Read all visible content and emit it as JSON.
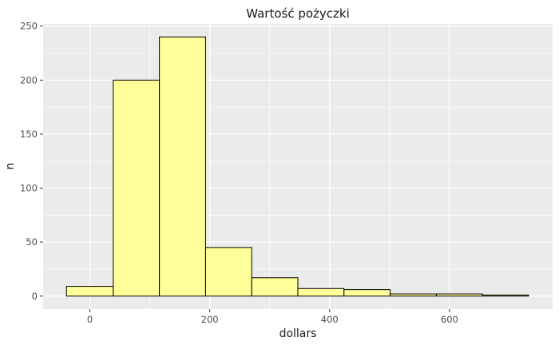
{
  "chart_data": {
    "type": "bar",
    "title": "Wartość pożyczki",
    "xlabel": "dollars",
    "ylabel": "n",
    "bins": [
      {
        "x0": -39,
        "x1": 39,
        "count": 9
      },
      {
        "x0": 39,
        "x1": 116,
        "count": 200
      },
      {
        "x0": 116,
        "x1": 193,
        "count": 240
      },
      {
        "x0": 193,
        "x1": 270,
        "count": 45
      },
      {
        "x0": 270,
        "x1": 347,
        "count": 17
      },
      {
        "x0": 347,
        "x1": 424,
        "count": 7
      },
      {
        "x0": 424,
        "x1": 501,
        "count": 6
      },
      {
        "x0": 501,
        "x1": 578,
        "count": 2
      },
      {
        "x0": 578,
        "x1": 655,
        "count": 2
      },
      {
        "x0": 655,
        "x1": 732,
        "count": 1
      }
    ],
    "xlim": [
      -78,
      772
    ],
    "ylim": [
      -12,
      252
    ],
    "xticks": [
      0,
      200,
      400,
      600
    ],
    "yticks": [
      0,
      50,
      100,
      150,
      200,
      250
    ],
    "grid": true,
    "colors": {
      "panel": "#ebebeb",
      "grid": "#ffffff",
      "bar_fill": "#ffff99",
      "bar_stroke": "#000000"
    }
  }
}
